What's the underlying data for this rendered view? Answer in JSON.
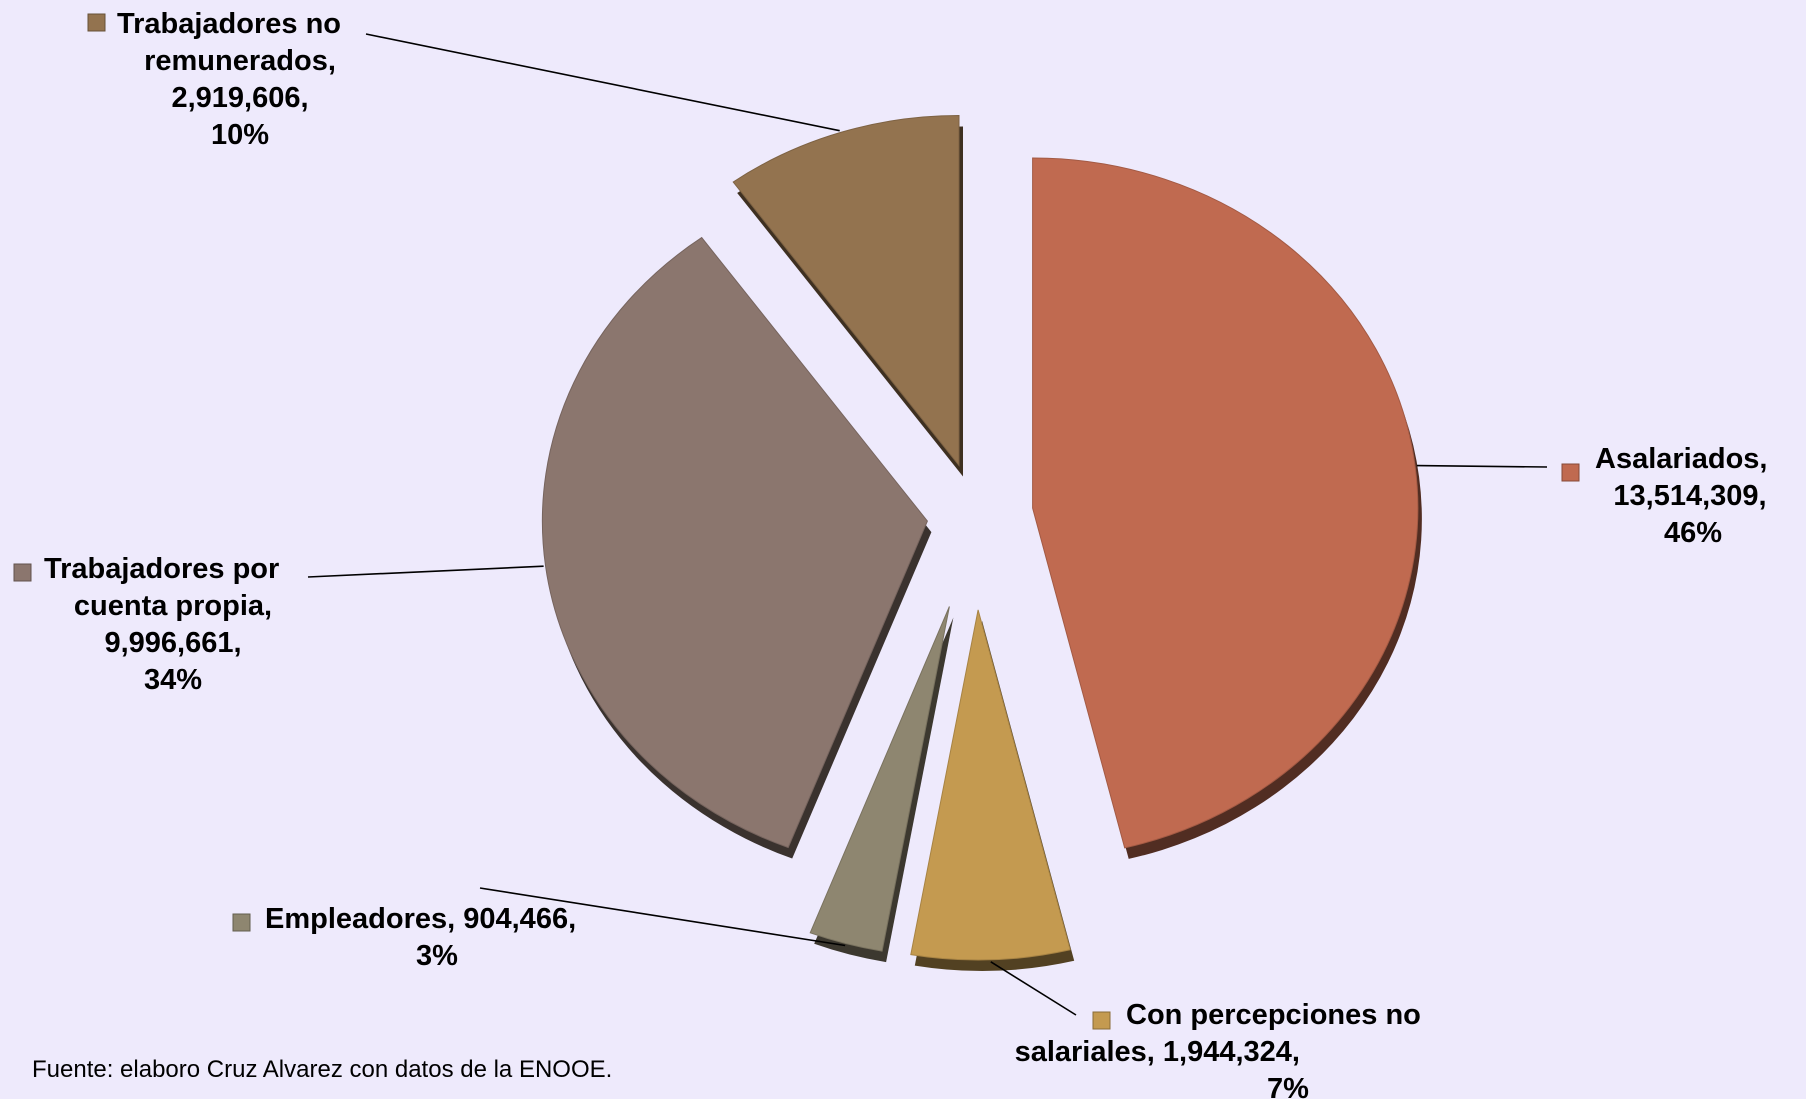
{
  "chart_data": {
    "type": "pie",
    "title": "",
    "legend": "none",
    "slices": [
      {
        "label": "Asalariados",
        "value": 13514309,
        "percent": "46%",
        "value_text": "13,514,309",
        "color": "#c06a50"
      },
      {
        "label": "Con percepciones no salariales",
        "value": 1944324,
        "percent": "7%",
        "value_text": "1,944,324",
        "color": "#c49a50"
      },
      {
        "label": "Empleadores",
        "value": 904466,
        "percent": "3%",
        "value_text": "904,466",
        "color": "#8e8670"
      },
      {
        "label": "Trabajadores por cuenta propia",
        "value": 9996661,
        "percent": "34%",
        "value_text": "9,996,661",
        "color": "#8b766e"
      },
      {
        "label": "Trabajadores no remunerados",
        "value": 2919606,
        "percent": "10%",
        "value_text": "2,919,606",
        "color": "#93734f"
      }
    ],
    "label_text": [
      [
        "Asalariados,",
        "13,514,309,",
        "46%"
      ],
      [
        "Con percepciones no",
        "salariales, 1,944,324,",
        "7%"
      ],
      [
        "Empleadores, 904,466,",
        "3%"
      ],
      [
        "Trabajadores por",
        "cuenta propia,",
        "9,996,661,",
        "34%"
      ],
      [
        "Trabajadores no",
        "remunerados,",
        "2,919,606,",
        "10%"
      ]
    ]
  },
  "source_note": "Fuente: elaboro Cruz Alvarez con datos de la ENOOE."
}
